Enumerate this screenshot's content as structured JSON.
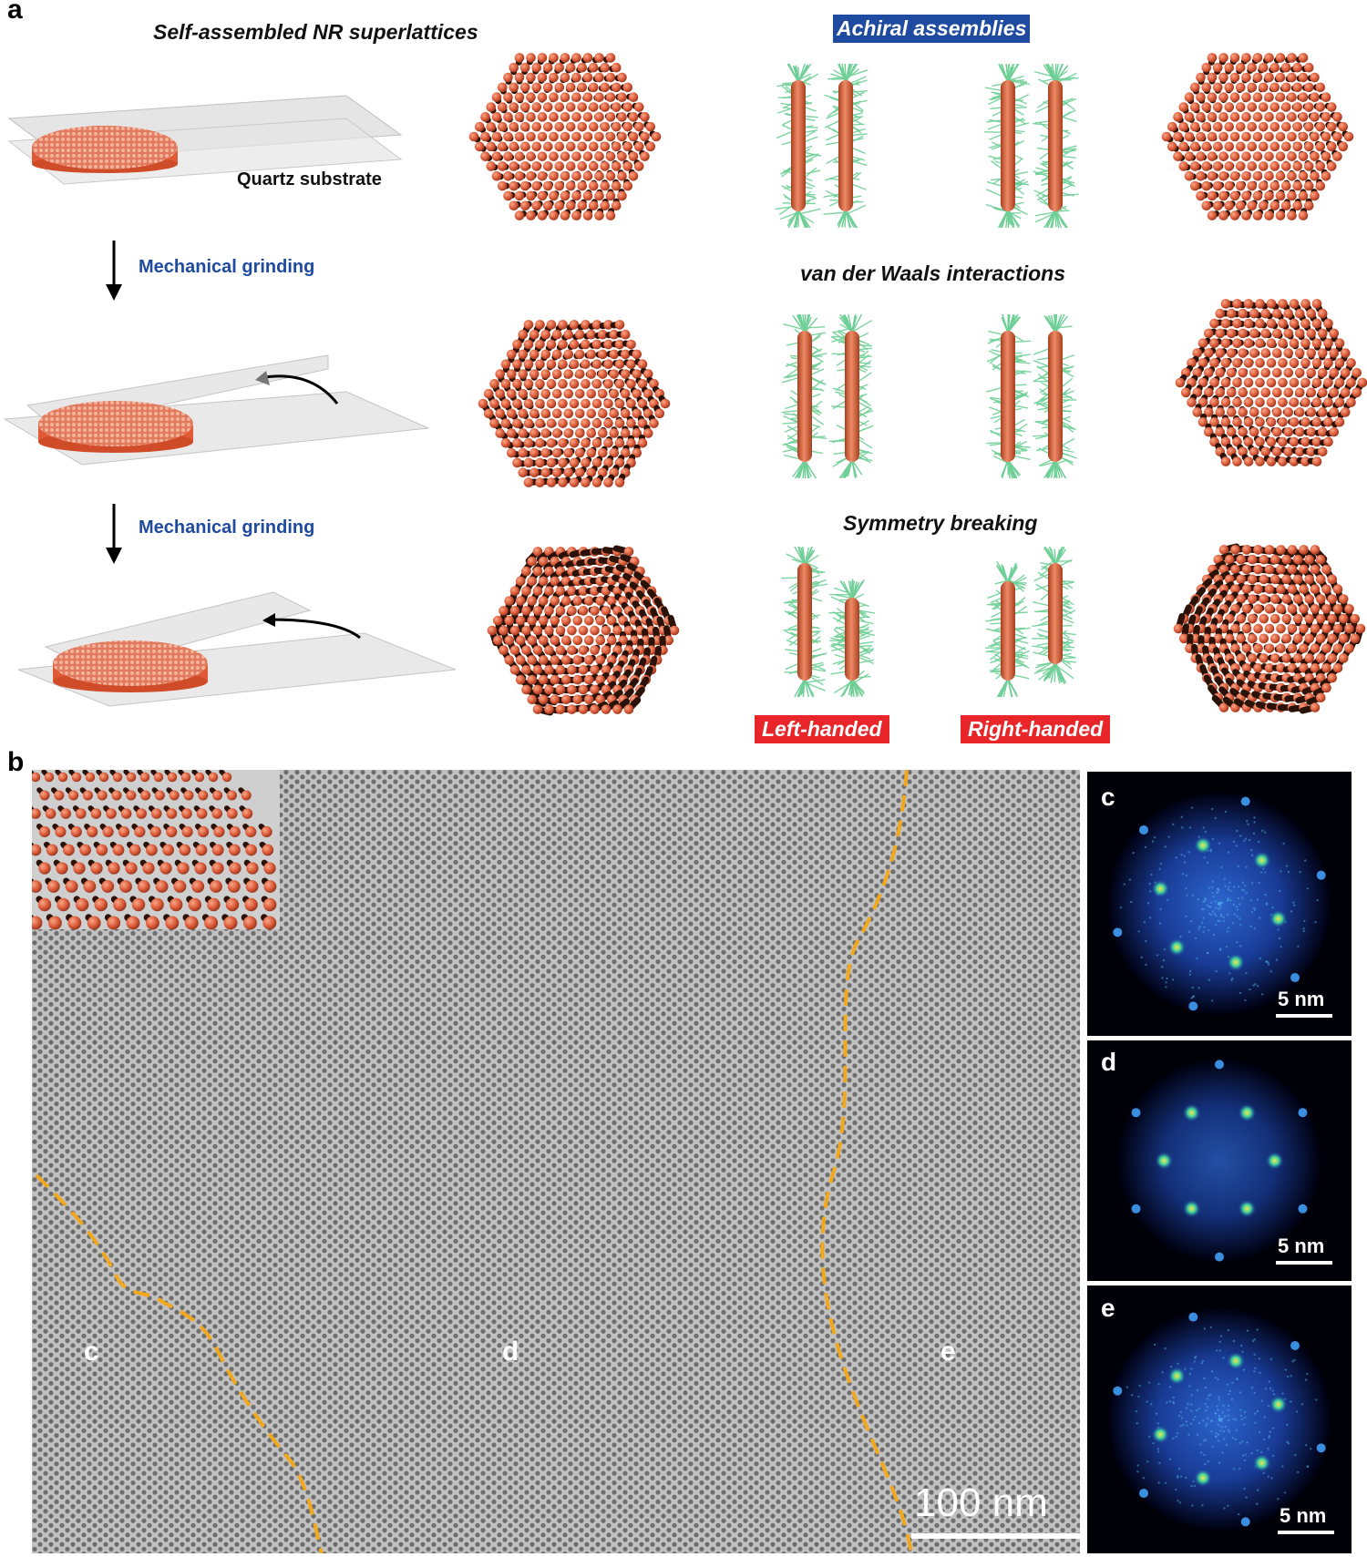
{
  "panel_a": {
    "letter": "a",
    "title_left": "Self-assembled NR superlattices",
    "substrate_label": "Quartz substrate",
    "step_label_1": "Mechanical grinding",
    "step_label_2": "Mechanical grinding",
    "tag_achiral": "Achiral assemblies",
    "heading_vdw": "van der Waals interactions",
    "heading_symmetry": "Symmetry breaking",
    "tag_left": "Left-handed",
    "tag_right": "Right-handed"
  },
  "panel_b": {
    "letter": "b",
    "region_c": "c",
    "region_d": "d",
    "region_e": "e",
    "scale_bar": "100 nm"
  },
  "fft_panels": [
    {
      "letter": "c",
      "scale": "5 nm"
    },
    {
      "letter": "d",
      "scale": "5 nm"
    },
    {
      "letter": "e",
      "scale": "5 nm"
    }
  ],
  "colors": {
    "rod": "#e0603f",
    "ligand": "#6fcf97",
    "boundary": "#f2a81c",
    "blue_tag": "#1e4aa0",
    "red_tag": "#e8262a"
  }
}
